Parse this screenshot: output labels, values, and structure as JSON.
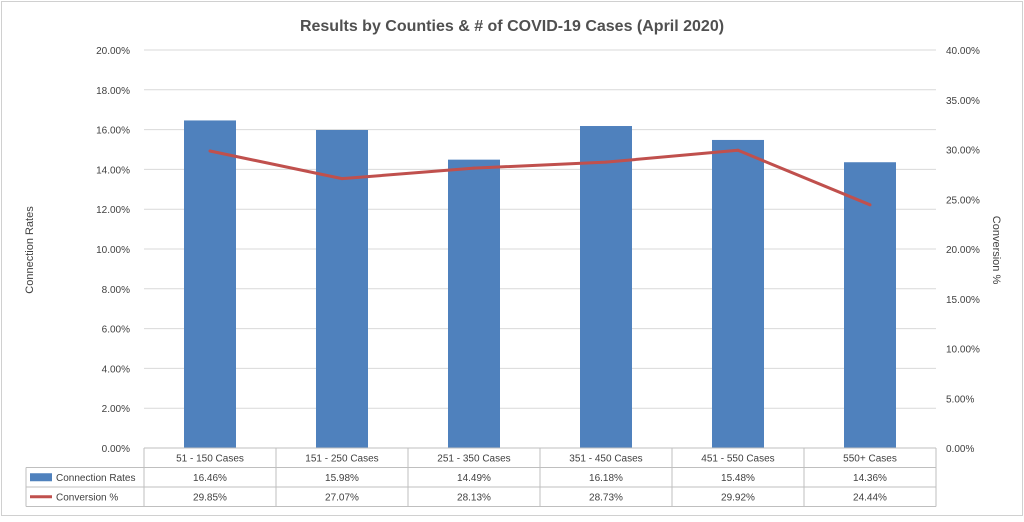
{
  "chart_data": {
    "type": "bar",
    "title": "Results by Counties & # of COVID-19 Cases (April 2020)",
    "categories": [
      "51 - 150 Cases",
      "151 - 250 Cases",
      "251 - 350 Cases",
      "351 - 450 Cases",
      "451 - 550 Cases",
      "550+ Cases"
    ],
    "ylabel": "Connection Rates",
    "y2label": "Conversion %",
    "ylim": [
      0,
      20
    ],
    "y2lim": [
      0,
      40
    ],
    "yticks": [
      "0.00%",
      "2.00%",
      "4.00%",
      "6.00%",
      "8.00%",
      "10.00%",
      "12.00%",
      "14.00%",
      "16.00%",
      "18.00%",
      "20.00%"
    ],
    "y2ticks": [
      "0.00%",
      "5.00%",
      "10.00%",
      "15.00%",
      "20.00%",
      "25.00%",
      "30.00%",
      "35.00%",
      "40.00%"
    ],
    "grid": true,
    "legend": "data-table",
    "series": [
      {
        "name": "Connection Rates",
        "kind": "bar",
        "axis": "left",
        "color": "#4f81bd",
        "values": [
          16.46,
          15.98,
          14.49,
          16.18,
          15.48,
          14.36
        ],
        "labels": [
          "16.46%",
          "15.98%",
          "14.49%",
          "16.18%",
          "15.48%",
          "14.36%"
        ]
      },
      {
        "name": "Conversion %",
        "kind": "line",
        "axis": "right",
        "color": "#c0504d",
        "values": [
          29.85,
          27.07,
          28.13,
          28.73,
          29.92,
          24.44
        ],
        "labels": [
          "29.85%",
          "27.07%",
          "28.13%",
          "28.73%",
          "29.92%",
          "24.44%"
        ]
      }
    ]
  }
}
